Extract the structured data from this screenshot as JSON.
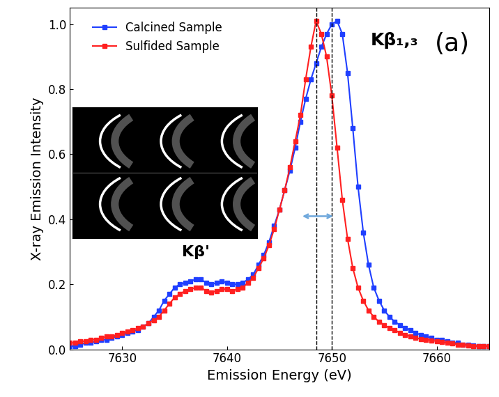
{
  "chart_data": {
    "type": "line",
    "x_label": "Emission Energy (eV)",
    "y_label": "X-ray Emission Intensity",
    "xlim": [
      7625,
      7665
    ],
    "xticks": [
      7630,
      7640,
      7650,
      7660
    ],
    "ylim": [
      0,
      1.05
    ],
    "yticks": [
      0.0,
      0.2,
      0.4,
      0.6,
      0.8,
      1.0
    ],
    "legend": "upper left",
    "marker": "square",
    "line_style": "solid",
    "annotations": [
      {
        "text": "Kβ'",
        "x": 7637,
        "y": 0.3
      },
      {
        "text": "Kβ₁,₃",
        "x": 7656,
        "y": 0.95
      },
      {
        "text": "(a)",
        "x": 7661.5,
        "y": 0.94
      }
    ],
    "vlines": [
      7648.5,
      7650.0
    ],
    "x": [
      7625,
      7625.5,
      7626,
      7626.5,
      7627,
      7627.5,
      7628,
      7628.5,
      7629,
      7629.5,
      7630,
      7630.5,
      7631,
      7631.5,
      7632,
      7632.5,
      7633,
      7633.5,
      7634,
      7634.5,
      7635,
      7635.5,
      7636,
      7636.5,
      7637,
      7637.5,
      7638,
      7638.5,
      7639,
      7639.5,
      7640,
      7640.5,
      7641,
      7641.5,
      7642,
      7642.5,
      7643,
      7643.5,
      7644,
      7644.5,
      7645,
      7645.5,
      7646,
      7646.5,
      7647,
      7647.5,
      7648,
      7648.5,
      7649,
      7649.5,
      7650,
      7650.5,
      7651,
      7651.5,
      7652,
      7652.5,
      7653,
      7653.5,
      7654,
      7654.5,
      7655,
      7655.5,
      7656,
      7656.5,
      7657,
      7657.5,
      7658,
      7658.5,
      7659,
      7659.5,
      7660,
      7660.5,
      7661,
      7661.5,
      7662,
      7662.5,
      7663,
      7663.5,
      7664,
      7664.5,
      7665
    ],
    "series": [
      {
        "name": "Calcined Sample",
        "color": "#1f3fff",
        "values": [
          0.01,
          0.01,
          0.015,
          0.02,
          0.02,
          0.025,
          0.03,
          0.03,
          0.035,
          0.04,
          0.045,
          0.05,
          0.055,
          0.06,
          0.07,
          0.08,
          0.1,
          0.12,
          0.15,
          0.17,
          0.19,
          0.2,
          0.205,
          0.21,
          0.215,
          0.215,
          0.205,
          0.2,
          0.205,
          0.21,
          0.205,
          0.2,
          0.2,
          0.205,
          0.215,
          0.23,
          0.26,
          0.29,
          0.33,
          0.38,
          0.43,
          0.49,
          0.55,
          0.62,
          0.7,
          0.77,
          0.83,
          0.88,
          0.93,
          0.97,
          1.0,
          1.01,
          0.97,
          0.85,
          0.68,
          0.5,
          0.36,
          0.26,
          0.19,
          0.15,
          0.12,
          0.1,
          0.085,
          0.075,
          0.065,
          0.06,
          0.05,
          0.045,
          0.04,
          0.035,
          0.03,
          0.03,
          0.025,
          0.02,
          0.02,
          0.015,
          0.015,
          0.012,
          0.01,
          0.01,
          0.01
        ]
      },
      {
        "name": "Sulfided Sample",
        "color": "#ff2020",
        "values": [
          0.02,
          0.02,
          0.025,
          0.025,
          0.03,
          0.03,
          0.035,
          0.04,
          0.04,
          0.045,
          0.05,
          0.055,
          0.06,
          0.065,
          0.07,
          0.08,
          0.09,
          0.1,
          0.12,
          0.14,
          0.16,
          0.17,
          0.18,
          0.185,
          0.19,
          0.19,
          0.18,
          0.175,
          0.18,
          0.185,
          0.185,
          0.18,
          0.185,
          0.19,
          0.205,
          0.22,
          0.25,
          0.28,
          0.32,
          0.37,
          0.43,
          0.49,
          0.56,
          0.64,
          0.72,
          0.83,
          0.93,
          1.01,
          0.97,
          0.9,
          0.78,
          0.62,
          0.46,
          0.34,
          0.25,
          0.19,
          0.15,
          0.12,
          0.1,
          0.085,
          0.075,
          0.065,
          0.06,
          0.05,
          0.045,
          0.04,
          0.035,
          0.032,
          0.03,
          0.028,
          0.025,
          0.022,
          0.02,
          0.018,
          0.015,
          0.015,
          0.012,
          0.01,
          0.01,
          0.01,
          0.01
        ]
      }
    ]
  }
}
